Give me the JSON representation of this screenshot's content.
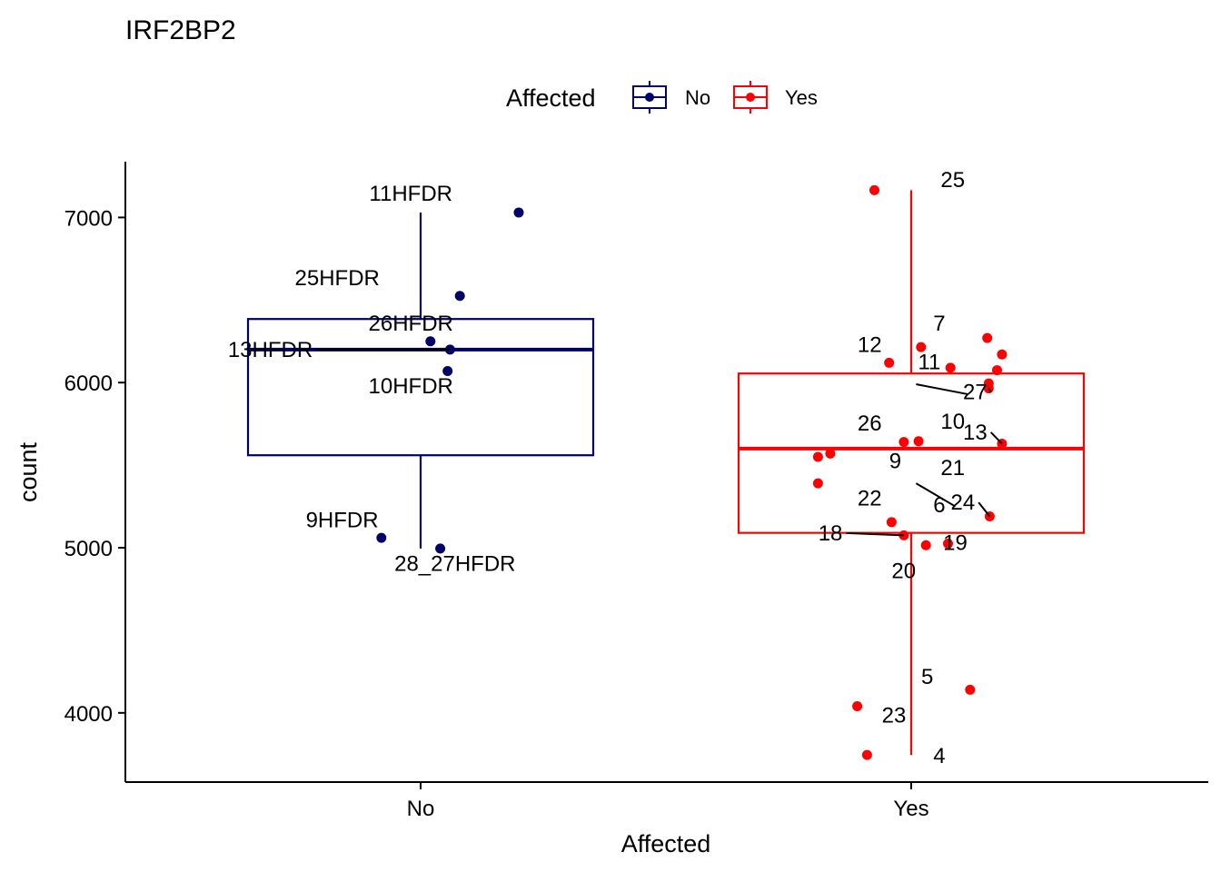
{
  "chart_data": {
    "type": "boxplot",
    "title": "IRF2BP2",
    "xlabel": "Affected",
    "ylabel": "count",
    "categories": [
      "No",
      "Yes"
    ],
    "ylim": [
      3600,
      7350
    ],
    "yticks": [
      4000,
      5000,
      6000,
      7000
    ],
    "legend": {
      "title": "Affected",
      "position": "top",
      "entries": [
        {
          "label": "No",
          "color": "#00006B"
        },
        {
          "label": "Yes",
          "color": "#FF0000"
        }
      ]
    },
    "boxes": [
      {
        "category": "No",
        "color": "#00006B",
        "whisker_low": 4995,
        "q1": 5560,
        "median": 6200,
        "q3": 6385,
        "whisker_high": 7030
      },
      {
        "category": "Yes",
        "color": "#FF0000",
        "whisker_low": 3745,
        "q1": 5090,
        "median": 5600,
        "q3": 6055,
        "whisker_high": 7165
      }
    ],
    "points": [
      {
        "group": "No",
        "x": 1.2,
        "y": 7030,
        "label": "11HFDR",
        "lx": 0.98,
        "ly": 7100
      },
      {
        "group": "No",
        "x": 1.08,
        "y": 6525,
        "label": "25HFDR",
        "lx": 0.83,
        "ly": 6590
      },
      {
        "group": "No",
        "x": 1.02,
        "y": 6250,
        "label": "26HFDR",
        "lx": 0.98,
        "ly": 6315
      },
      {
        "group": "No",
        "x": 1.06,
        "y": 6200,
        "label": "13HFDR",
        "lx": 0.78,
        "ly": 6155,
        "leader": true
      },
      {
        "group": "No",
        "x": 1.055,
        "y": 6070,
        "label": "10HFDR",
        "lx": 0.98,
        "ly": 5935
      },
      {
        "group": "No",
        "x": 0.92,
        "y": 5060,
        "label": "9HFDR",
        "lx": 0.84,
        "ly": 5125
      },
      {
        "group": "No",
        "x": 1.04,
        "y": 4995,
        "label": "28_27HFDR",
        "lx": 1.07,
        "ly": 4860
      },
      {
        "group": "Yes",
        "x": 1.925,
        "y": 7165,
        "label": "25",
        "lx": 2.06,
        "ly": 7185
      },
      {
        "group": "Yes",
        "x": 2.02,
        "y": 6215,
        "label": "7",
        "lx": 2.045,
        "ly": 6315
      },
      {
        "group": "Yes",
        "x": 1.955,
        "y": 6120,
        "label": "12",
        "lx": 1.94,
        "ly": 6185
      },
      {
        "group": "Yes",
        "x": 2.08,
        "y": 6090,
        "label": "11",
        "lx": 2.06,
        "ly": 6080
      },
      {
        "group": "Yes",
        "x": 2.155,
        "y": 6270,
        "label": "",
        "lx": 0,
        "ly": 0
      },
      {
        "group": "Yes",
        "x": 2.185,
        "y": 6170,
        "label": "",
        "lx": 0,
        "ly": 0
      },
      {
        "group": "Yes",
        "x": 2.175,
        "y": 6075,
        "label": "",
        "lx": 0,
        "ly": 0
      },
      {
        "group": "Yes",
        "x": 2.158,
        "y": 5995,
        "label": "",
        "lx": 0,
        "ly": 0
      },
      {
        "group": "Yes",
        "x": 2.158,
        "y": 5965,
        "label": "27",
        "lx": 2.155,
        "ly": 5900,
        "leader": true
      },
      {
        "group": "Yes",
        "x": 1.985,
        "y": 5640,
        "label": "26",
        "lx": 1.94,
        "ly": 5710
      },
      {
        "group": "Yes",
        "x": 2.015,
        "y": 5645,
        "label": "10",
        "lx": 2.06,
        "ly": 5720
      },
      {
        "group": "Yes",
        "x": 2.185,
        "y": 5630,
        "label": "13",
        "lx": 2.155,
        "ly": 5655,
        "leader": true
      },
      {
        "group": "Yes",
        "x": 1.81,
        "y": 5550,
        "label": "",
        "lx": 0,
        "ly": 0
      },
      {
        "group": "Yes",
        "x": 1.835,
        "y": 5570,
        "label": "",
        "lx": 0,
        "ly": 0
      },
      {
        "group": "Yes",
        "x": 1.81,
        "y": 5390,
        "label": "9",
        "lx": 1.955,
        "ly": 5480
      },
      {
        "group": "Yes",
        "x": 2.16,
        "y": 5190,
        "label": "24",
        "lx": 2.13,
        "ly": 5230,
        "leader": true
      },
      {
        "group": "Yes",
        "x": 1.96,
        "y": 5155,
        "label": "22",
        "lx": 1.94,
        "ly": 5255
      },
      {
        "group": "Yes",
        "x": 1.985,
        "y": 5075,
        "label": "18",
        "lx": 1.86,
        "ly": 5045,
        "leader": true
      },
      {
        "group": "Yes",
        "x": 2.03,
        "y": 5015,
        "label": "19",
        "lx": 2.065,
        "ly": 4985
      },
      {
        "group": "Yes",
        "x": 2.075,
        "y": 5025,
        "label": "",
        "lx": 0,
        "ly": 0
      },
      {
        "group": "Yes",
        "x": 1.89,
        "y": 4040,
        "label": "23",
        "lx": 1.94,
        "ly": 3940
      },
      {
        "group": "Yes",
        "x": 1.91,
        "y": 3745,
        "label": "4",
        "lx": 2.045,
        "ly": 3695
      },
      {
        "group": "Yes",
        "x": 2.12,
        "y": 4140,
        "label": "5",
        "lx": 2.045,
        "ly": 4175
      }
    ],
    "extra_labels": [
      {
        "group": "Yes",
        "label": "21",
        "lx": 2.06,
        "ly": 5440
      },
      {
        "group": "Yes",
        "label": "6",
        "lx": 2.045,
        "ly": 5215
      },
      {
        "group": "Yes",
        "label": "20",
        "lx": 1.96,
        "ly": 4815
      }
    ],
    "segments": [
      {
        "group": "Yes",
        "x1": 2.01,
        "y1": 5390,
        "x2": 2.09,
        "y2": 5250
      },
      {
        "group": "Yes",
        "x1": 2.01,
        "y1": 5990,
        "x2": 2.115,
        "y2": 5930
      }
    ]
  }
}
